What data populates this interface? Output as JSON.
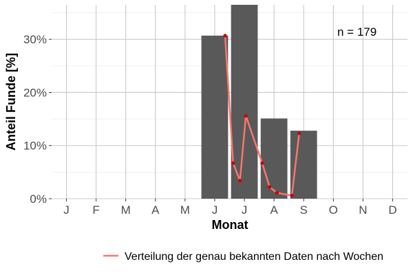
{
  "chart_data": {
    "type": "bar",
    "categories": [
      "J",
      "F",
      "M",
      "A",
      "M",
      "J",
      "J",
      "A",
      "S",
      "O",
      "N",
      "D"
    ],
    "values": [
      0,
      0,
      0,
      0,
      0,
      30.7,
      36.5,
      15.1,
      12.8,
      0,
      0,
      0
    ],
    "xlabel": "Monat",
    "ylabel": "Anteil Funde [%]",
    "ylim": [
      0,
      36.5
    ],
    "yticks": [
      0,
      10,
      20,
      30
    ],
    "ytick_labels": [
      "0%",
      "10%",
      "20%",
      "30%"
    ],
    "annotation": "n = 179",
    "grid": true,
    "legend_position": "bottom",
    "bar_color": "#595959",
    "series": [
      {
        "name": "Verteilung der genau bekannten Daten nach Wochen",
        "type": "line",
        "color": "#f8766d",
        "point_color": "#cc0000",
        "x": [
          6.35,
          6.62,
          6.85,
          7.05,
          7.6,
          7.85,
          8.1,
          8.6,
          8.85
        ],
        "y": [
          30.7,
          6.7,
          3.4,
          15.6,
          6.7,
          2.2,
          1.1,
          0.6,
          12.3
        ]
      }
    ]
  }
}
